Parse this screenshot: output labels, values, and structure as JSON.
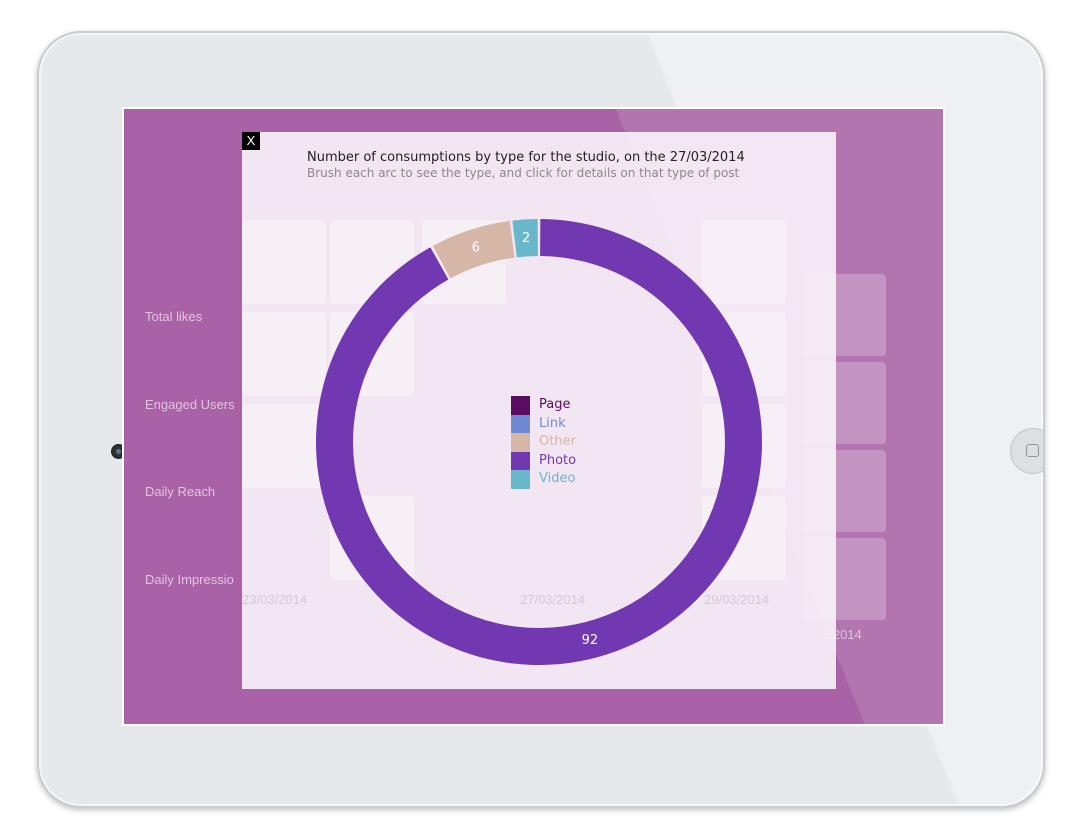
{
  "background": {
    "row_labels": [
      "Total likes",
      "Engaged Users",
      "Daily Reach",
      "Daily Impressio"
    ],
    "date_labels": [
      "23/03/2014",
      "25/03/2014",
      "27/03/2014",
      "29/03/2014",
      "3/2014"
    ]
  },
  "modal": {
    "close_label": "X",
    "title": "Number of consumptions by type for the studio, on the 27/03/2014",
    "subtitle": "Brush each arc to see the type, and click for details on that type of post"
  },
  "colors": {
    "Page": "#5a0c62",
    "Link": "#6f8ad0",
    "Other": "#d6b6a6",
    "Photo": "#7238b2",
    "Video": "#6ab7cb"
  },
  "chart_data": {
    "type": "pie",
    "variant": "donut",
    "title": "Number of consumptions by type for the studio, on the 27/03/2014",
    "subtitle": "Brush each arc to see the type, and click for details on that type of post",
    "categories": [
      "Page",
      "Link",
      "Other",
      "Photo",
      "Video"
    ],
    "values": [
      0,
      0,
      6,
      92,
      2
    ],
    "legend": [
      "Page",
      "Link",
      "Other",
      "Photo",
      "Video"
    ],
    "legend_position": "center"
  }
}
